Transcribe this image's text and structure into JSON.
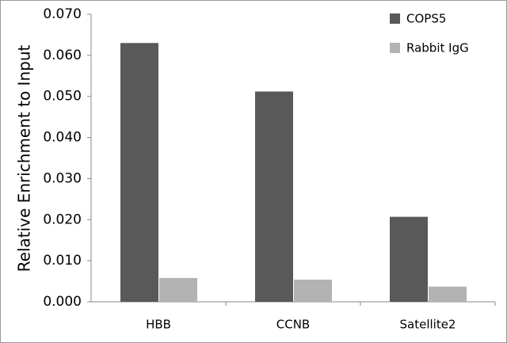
{
  "chart_data": {
    "type": "bar",
    "y_label": "Relative Enrichment to Input",
    "categories": [
      "HBB",
      "CCNB",
      "Satellite2"
    ],
    "series": [
      {
        "name": "COPS5",
        "color": "#595959",
        "values": [
          0.063,
          0.0512,
          0.0207
        ]
      },
      {
        "name": "Rabbit IgG",
        "color": "#b3b3b3",
        "values": [
          0.0058,
          0.0054,
          0.0037
        ]
      }
    ],
    "ylim": [
      0,
      0.07
    ],
    "yticks": [
      {
        "value": 0,
        "label": "0.000"
      },
      {
        "value": 0.01,
        "label": "0.010"
      },
      {
        "value": 0.02,
        "label": "0.020"
      },
      {
        "value": 0.03,
        "label": "0.030"
      },
      {
        "value": 0.04,
        "label": "0.040"
      },
      {
        "value": 0.05,
        "label": "0.050"
      },
      {
        "value": 0.06,
        "label": "0.060"
      },
      {
        "value": 0.07,
        "label": "0.070"
      }
    ],
    "grid": false,
    "legend": "top-right"
  }
}
